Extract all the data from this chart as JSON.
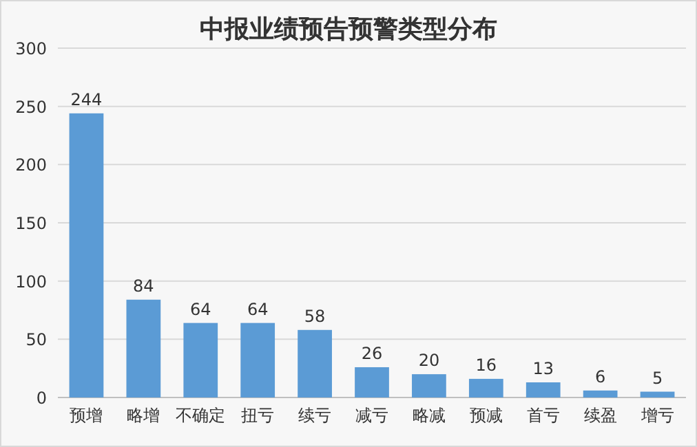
{
  "chart_data": {
    "type": "bar",
    "title": "中报业绩预告预警类型分布",
    "categories": [
      "预增",
      "略增",
      "不确定",
      "扭亏",
      "续亏",
      "减亏",
      "略减",
      "预减",
      "首亏",
      "续盈",
      "增亏"
    ],
    "values": [
      244,
      84,
      64,
      64,
      58,
      26,
      20,
      16,
      13,
      6,
      5
    ],
    "color": "#5b9bd5",
    "ylim": [
      0,
      300
    ],
    "yticks": [
      0,
      50,
      100,
      150,
      200,
      250,
      300
    ],
    "grid": "y",
    "data_labels": true
  }
}
